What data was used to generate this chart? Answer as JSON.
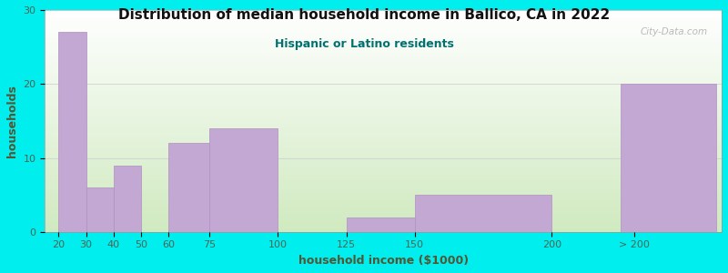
{
  "title": "Distribution of median household income in Ballico, CA in 2022",
  "subtitle": "Hispanic or Latino residents",
  "xlabel": "household income ($1000)",
  "ylabel": "households",
  "background_color": "#00EEEE",
  "bar_color": "#C4A8D4",
  "bar_edge_color": "#B090C0",
  "title_color": "#111111",
  "subtitle_color": "#007070",
  "axis_label_color": "#555533",
  "tick_label_color": "#446655",
  "watermark": "City-Data.com",
  "tick_positions": [
    20,
    30,
    40,
    50,
    60,
    75,
    100,
    125,
    150,
    200,
    230
  ],
  "tick_labels": [
    "20",
    "30",
    "40",
    "50",
    "60",
    "75",
    "100",
    "125",
    "150",
    "200",
    "> 200"
  ],
  "bar_lefts": [
    20,
    30,
    40,
    60,
    75,
    125,
    150,
    225
  ],
  "bar_rights": [
    30,
    40,
    50,
    75,
    100,
    150,
    200,
    260
  ],
  "bar_values": [
    27,
    6,
    9,
    12,
    14,
    2,
    5,
    20
  ],
  "ylim": [
    0,
    30
  ],
  "xlim": [
    15,
    262
  ],
  "yticks": [
    0,
    10,
    20,
    30
  ]
}
